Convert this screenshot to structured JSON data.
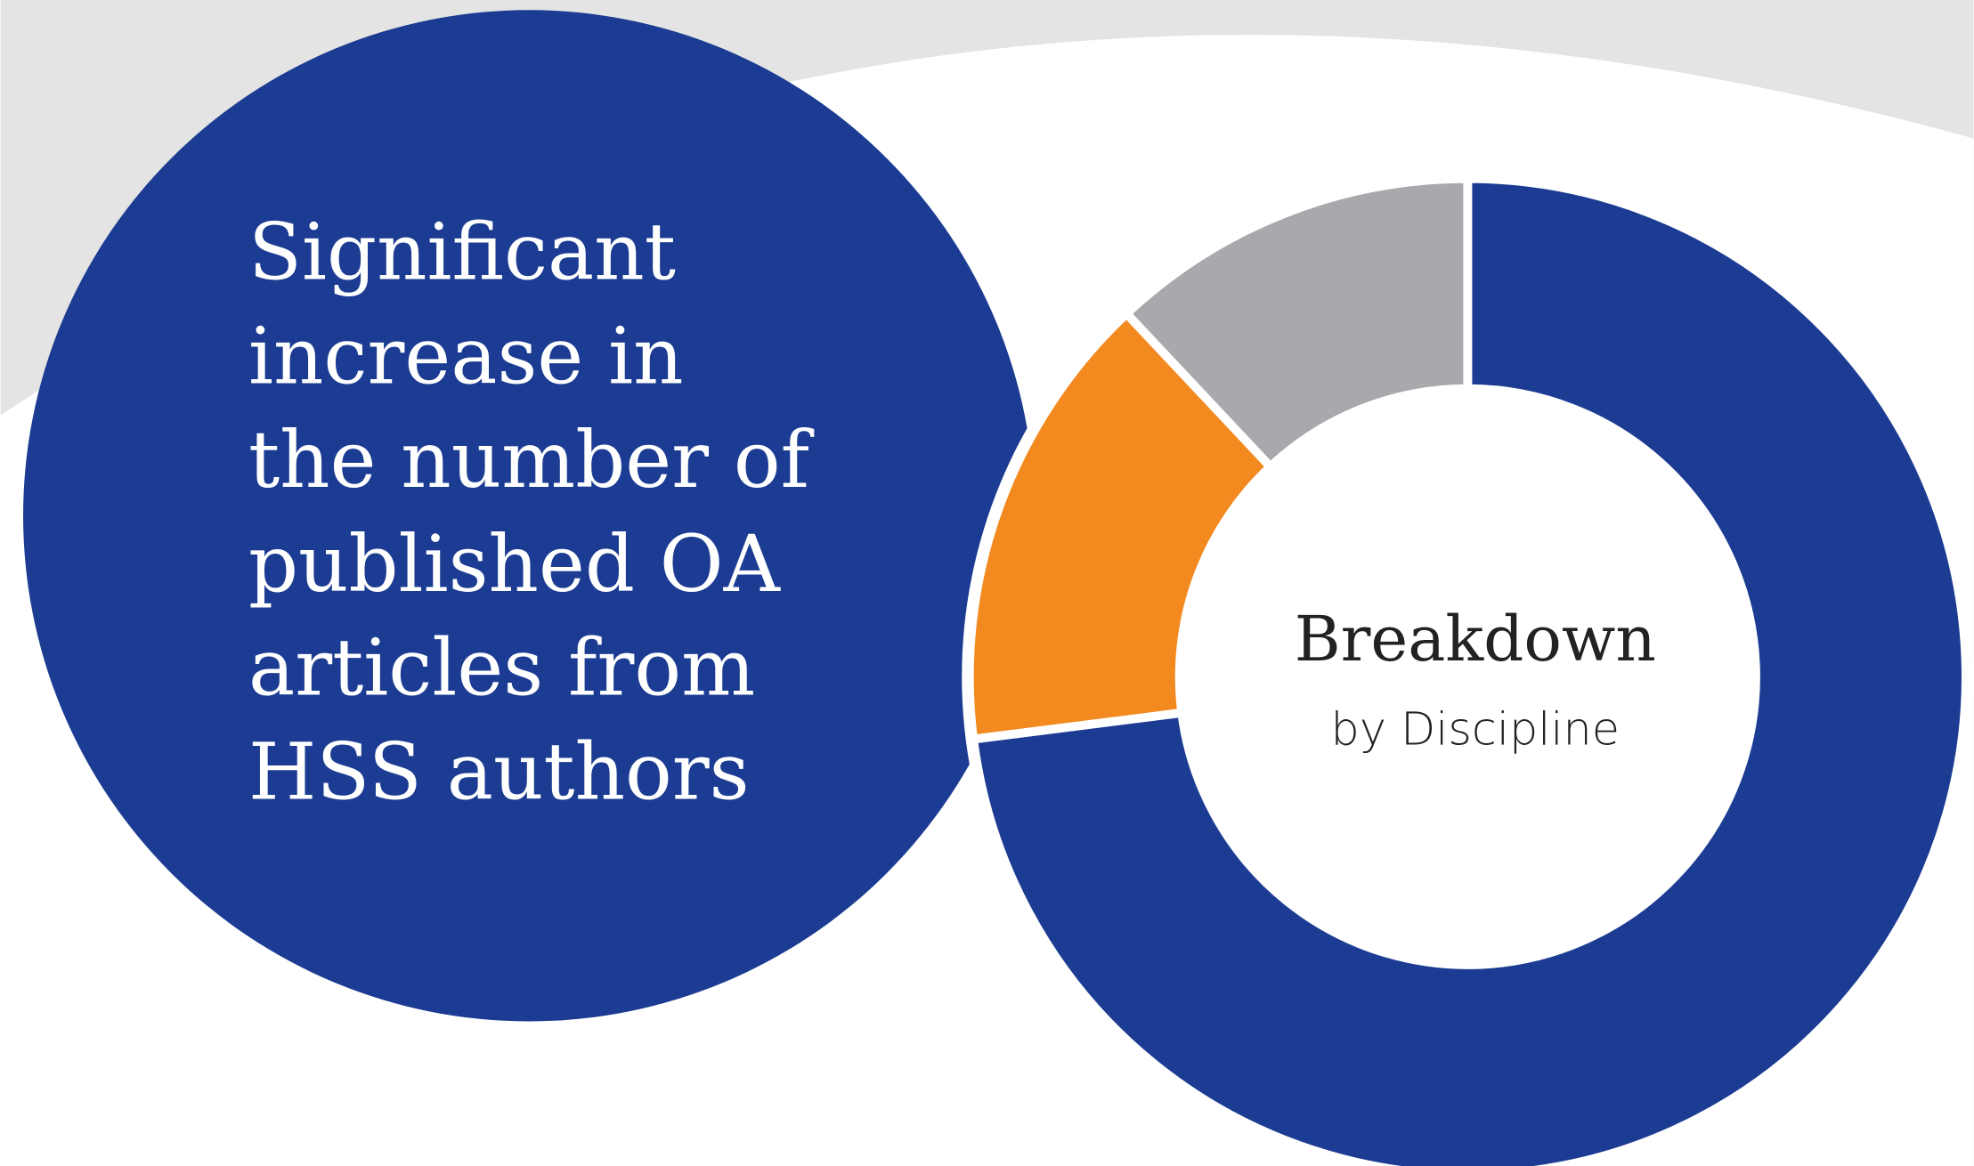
{
  "headline": [
    "Significant",
    "increase in",
    "the number of",
    "published OA",
    "articles from",
    "HSS authors"
  ],
  "chart_data": {
    "type": "donut",
    "title": "Breakdown",
    "subtitle": "by Discipline",
    "values": [
      73,
      15,
      12
    ],
    "colors": [
      "#1b3c92",
      "#f28a20",
      "#a7a9ac"
    ]
  }
}
